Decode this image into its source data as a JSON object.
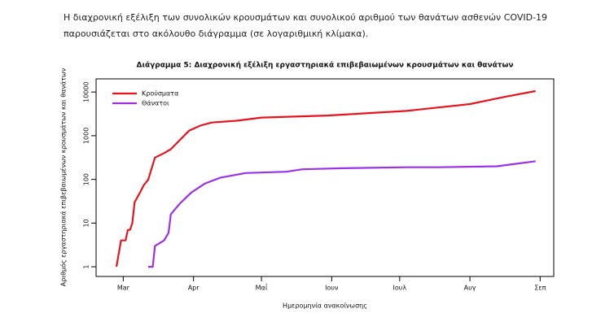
{
  "paragraph": "Η διαχρονική εξέλιξη των συνολικών κρουσμάτων και συνολικού αριθμού των θανάτων ασθενών COVID-19 παρουσιάζεται στο ακόλουθο διάγραμμα (σε λογαριθμική κλίμακα).",
  "chart_data": {
    "type": "line",
    "title": "Διάγραμμα 5: Διαχρονική εξέλιξη εργαστηριακά επιβεβαιωμένων κρουσμάτων και θανάτων",
    "x_label": "Ημερομηνία ανακοίνωσης",
    "y_label": "Αριθμός εργαστηριακά επιβεβαιωμένων κρουσμάτων και θανάτων",
    "log_y": true,
    "legend": "top-left",
    "xlim": [
      49,
      251
    ],
    "xticks": [
      {
        "value": 61,
        "label": "Mar"
      },
      {
        "value": 92,
        "label": "Apr"
      },
      {
        "value": 122,
        "label": "Μαΐ"
      },
      {
        "value": 153,
        "label": "Ιουν"
      },
      {
        "value": 183,
        "label": "Ιουλ"
      },
      {
        "value": 214,
        "label": "Αυγ"
      },
      {
        "value": 245,
        "label": "Σεπ"
      }
    ],
    "ylim": [
      0.6,
      20000
    ],
    "yticks": [
      1,
      10,
      100,
      1000,
      10000
    ],
    "series": [
      {
        "name": "Κρούσματα",
        "color": "#e8141c",
        "x": [
          58,
          60,
          62,
          63,
          64,
          65,
          66,
          68,
          70,
          72,
          75,
          79,
          82,
          86,
          90,
          95,
          100,
          111,
          122,
          151,
          186,
          214,
          229,
          243
        ],
        "values": [
          1,
          4,
          4,
          7,
          7,
          10,
          30,
          46,
          73,
          99,
          316,
          400,
          490,
          800,
          1300,
          1700,
          2000,
          2200,
          2600,
          2900,
          3700,
          5300,
          7700,
          10500
        ]
      },
      {
        "name": "Θάνατοι",
        "color": "#9b30e8",
        "x": [
          72,
          74,
          75,
          79,
          81,
          82,
          86,
          91,
          97,
          104,
          115,
          133,
          140,
          158,
          186,
          200,
          226,
          243
        ],
        "values": [
          1,
          1,
          3,
          4,
          6,
          16,
          28,
          50,
          80,
          110,
          140,
          150,
          170,
          180,
          190,
          190,
          200,
          260
        ]
      }
    ]
  }
}
